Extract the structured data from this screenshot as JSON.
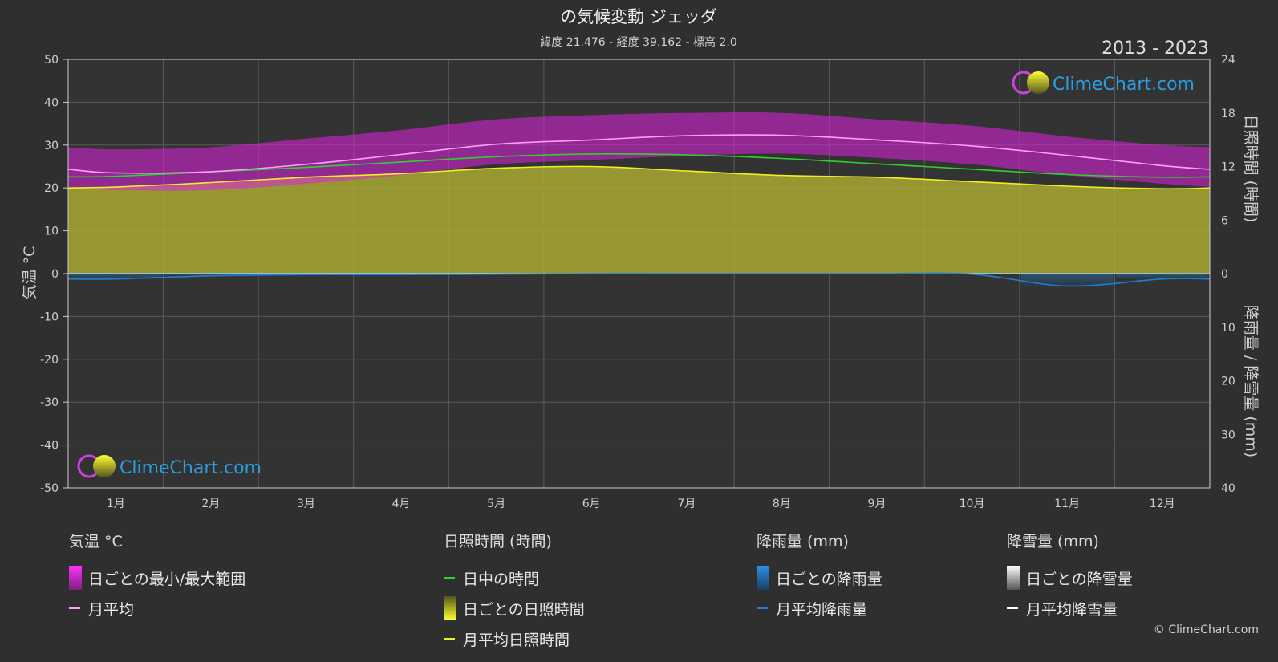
{
  "title": "の気候変動 ジェッダ",
  "subtitle": "緯度 21.476 - 経度 39.162 - 標高 2.0",
  "year_range": "2013 - 2023",
  "logo_text": "ClimeChart.com",
  "copyright": "© ClimeChart.com",
  "colors": {
    "background": "#2f2f2f",
    "temp_range": "#e020e0",
    "temp_avg": "#ff9cff",
    "daylight": "#30d030",
    "sunshine_fill": "#a8a832",
    "sunshine_line": "#f0f020",
    "rain": "#1e7fd0",
    "snow": "#ffffff",
    "logo": "#2a9ee0"
  },
  "chart_data": {
    "type": "line",
    "x_categories": [
      "1月",
      "2月",
      "3月",
      "4月",
      "5月",
      "6月",
      "7月",
      "8月",
      "9月",
      "10月",
      "11月",
      "12月"
    ],
    "left_axis": {
      "label": "気温 °C",
      "range": [
        -50,
        50
      ],
      "ticks": [
        50,
        40,
        30,
        20,
        10,
        0,
        -10,
        -20,
        -30,
        -40,
        -50
      ]
    },
    "right_axis_top": {
      "label": "日照時間 (時間)",
      "range": [
        0,
        24
      ],
      "ticks": [
        24,
        18,
        12,
        6,
        0
      ]
    },
    "right_axis_bottom": {
      "label": "降雨量 / 降雪量 (mm)",
      "range": [
        0,
        40
      ],
      "ticks": [
        0,
        10,
        20,
        30,
        40
      ]
    },
    "series": [
      {
        "name": "月平均",
        "axis": "temperature",
        "values": [
          23.5,
          23.8,
          25.5,
          27.8,
          30.2,
          31.2,
          32.2,
          32.3,
          31.2,
          29.8,
          27.6,
          25.2
        ]
      },
      {
        "name": "日ごとの最小/最大範囲",
        "axis": "temperature",
        "min": [
          19.5,
          19.5,
          21.0,
          23.0,
          25.5,
          26.5,
          27.5,
          28.0,
          27.0,
          25.5,
          23.0,
          21.0
        ],
        "max": [
          29.0,
          29.5,
          31.5,
          33.5,
          36.0,
          37.0,
          37.5,
          37.5,
          36.0,
          34.5,
          32.0,
          30.0
        ]
      },
      {
        "name": "日中の時間",
        "axis": "sunshine",
        "values": [
          10.9,
          11.4,
          11.9,
          12.5,
          13.1,
          13.4,
          13.3,
          12.9,
          12.3,
          11.7,
          11.1,
          10.8
        ]
      },
      {
        "name": "月平均日照時間",
        "axis": "sunshine",
        "values": [
          9.7,
          10.2,
          10.8,
          11.2,
          11.8,
          12.0,
          11.5,
          11.0,
          10.8,
          10.3,
          9.8,
          9.5
        ]
      },
      {
        "name": "月平均降雨量",
        "axis": "precipitation",
        "values": [
          1.0,
          0.4,
          0.2,
          0.2,
          0.1,
          0.0,
          0.0,
          0.0,
          0.0,
          0.1,
          2.3,
          1.0
        ]
      },
      {
        "name": "月平均降雪量",
        "axis": "precipitation",
        "values": [
          0,
          0,
          0,
          0,
          0,
          0,
          0,
          0,
          0,
          0,
          0,
          0
        ]
      }
    ]
  },
  "legend": {
    "temperature": {
      "title": "気温 °C",
      "items": [
        "日ごとの最小/最大範囲",
        "月平均"
      ]
    },
    "sunshine": {
      "title": "日照時間 (時間)",
      "items": [
        "日中の時間",
        "日ごとの日照時間",
        "月平均日照時間"
      ]
    },
    "rain": {
      "title": "降雨量 (mm)",
      "items": [
        "日ごとの降雨量",
        "月平均降雨量"
      ]
    },
    "snow": {
      "title": "降雪量 (mm)",
      "items": [
        "日ごとの降雪量",
        "月平均降雪量"
      ]
    }
  }
}
